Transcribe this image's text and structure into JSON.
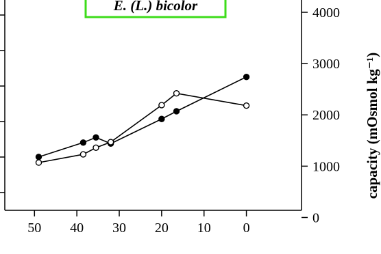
{
  "chart_data": {
    "type": "line",
    "title": "E. (L.) bicolor",
    "title_box_color": "#3ddc1a",
    "ylabel_right": "capacity (mOsmol kg⁻¹)",
    "xlabel": "",
    "xlim": [
      57,
      -13
    ],
    "ylim_right": [
      -100,
      4000
    ],
    "x_ticks": [
      50,
      40,
      30,
      20,
      10,
      0
    ],
    "y_ticks_right": [
      0,
      1000,
      2000,
      3000,
      4000
    ],
    "left_axis_tick_count": 6,
    "grid": false,
    "series": [
      {
        "marker": "filled-circle",
        "color": "#000000",
        "x": [
          49,
          38.5,
          35.5,
          32,
          20,
          16.5,
          0
        ],
        "y": [
          1180,
          1460,
          1560,
          1440,
          1920,
          2070,
          2740
        ]
      },
      {
        "marker": "open-circle",
        "color": "#000000",
        "x": [
          49,
          38.5,
          35.5,
          32,
          20,
          16.5,
          0
        ],
        "y": [
          1070,
          1230,
          1360,
          1470,
          2190,
          2420,
          2180
        ]
      }
    ]
  }
}
